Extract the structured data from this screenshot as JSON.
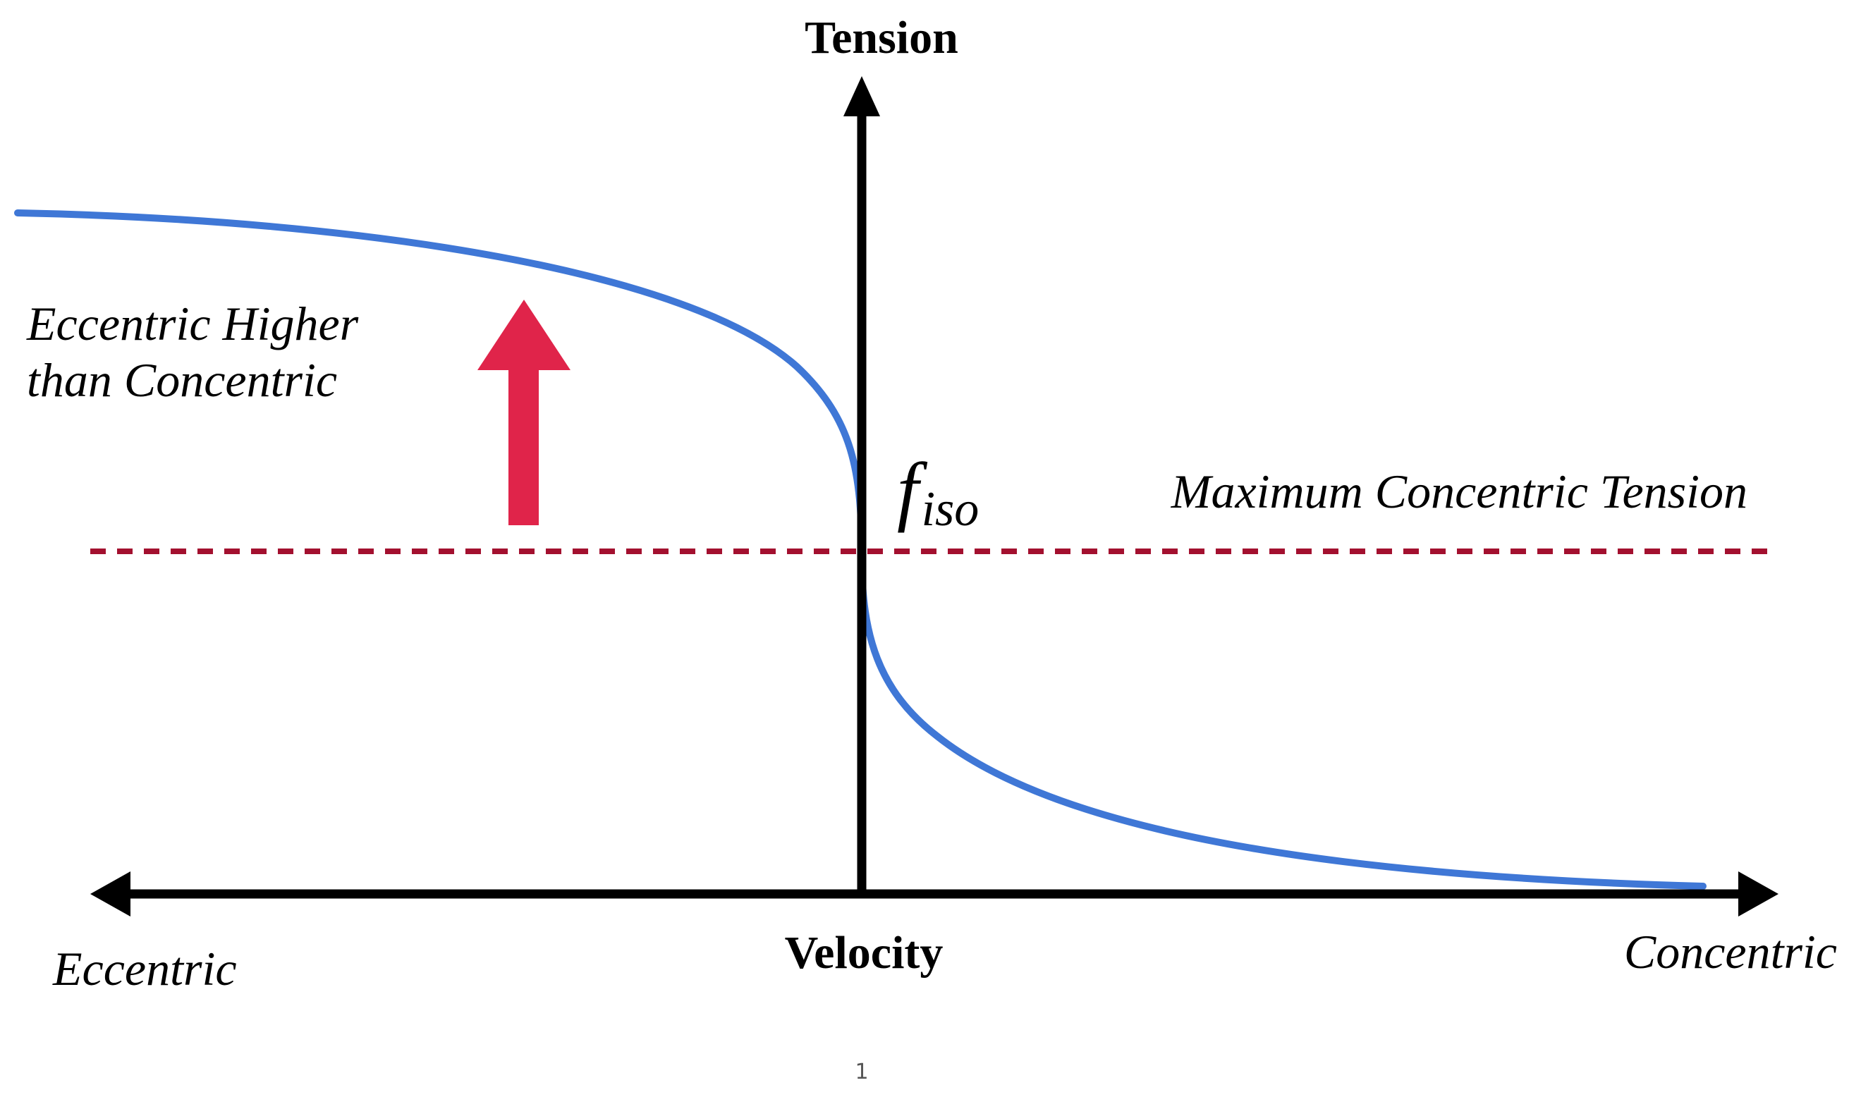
{
  "axes": {
    "y_label": "Tension",
    "x_label": "Velocity",
    "x_left_label": "Eccentric",
    "x_right_label": "Concentric"
  },
  "annotations": {
    "eccentric_note_line1": "Eccentric Higher",
    "eccentric_note_line2": "than Concentric",
    "reference_line_label": "Maximum Concentric Tension",
    "fiso_main": "f",
    "fiso_sub": "iso"
  },
  "footer": {
    "page_number": "1"
  },
  "colors": {
    "curve": "#3f77d6",
    "reference_line": "#a3102f",
    "arrow": "#e0244a",
    "axis": "#000000"
  }
}
